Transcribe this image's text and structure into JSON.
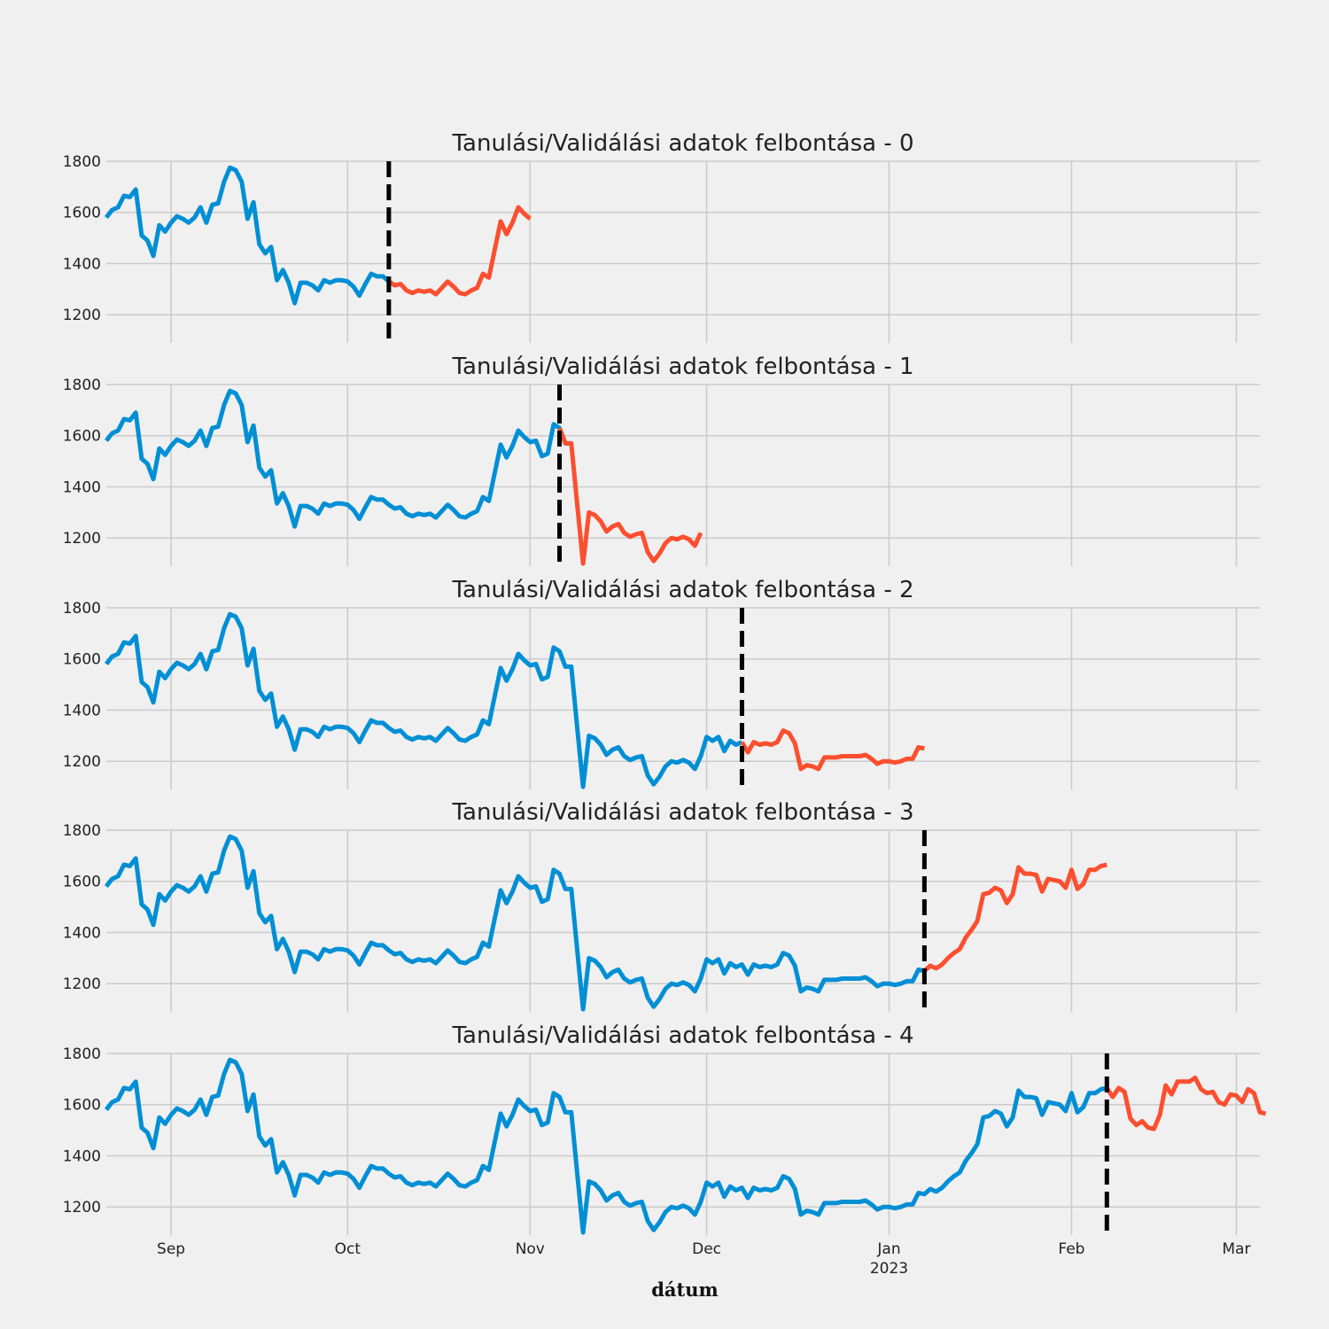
{
  "chart_data": {
    "type": "line",
    "title_prefix": "Tanulási/Validálási adatok felbontása - ",
    "xlabel": "dátum",
    "x_range": [
      "2022-08-21",
      "2023-03-05"
    ],
    "y_range": [
      1090,
      1800
    ],
    "y_ticks": [
      1200,
      1400,
      1600,
      1800
    ],
    "x_ticks": [
      {
        "date": "2022-09-01",
        "label": "Sep",
        "sublabel": ""
      },
      {
        "date": "2022-10-01",
        "label": "Oct",
        "sublabel": ""
      },
      {
        "date": "2022-11-01",
        "label": "Nov",
        "sublabel": ""
      },
      {
        "date": "2022-12-01",
        "label": "Dec",
        "sublabel": ""
      },
      {
        "date": "2023-01-01",
        "label": "Jan",
        "sublabel": "2023"
      },
      {
        "date": "2023-02-01",
        "label": "Feb",
        "sublabel": ""
      },
      {
        "date": "2023-03-01",
        "label": "Mar",
        "sublabel": ""
      }
    ],
    "grid": true,
    "colors": {
      "train": "#008fd5",
      "validation": "#fc4f30",
      "split": "#000000"
    },
    "start_date": "2022-08-21",
    "values": [
      1580,
      1610,
      1620,
      1665,
      1660,
      1690,
      1510,
      1490,
      1430,
      1550,
      1525,
      1560,
      1585,
      1575,
      1560,
      1580,
      1620,
      1560,
      1630,
      1635,
      1720,
      1775,
      1765,
      1720,
      1575,
      1640,
      1475,
      1440,
      1465,
      1335,
      1375,
      1325,
      1245,
      1325,
      1325,
      1315,
      1295,
      1335,
      1325,
      1335,
      1335,
      1330,
      1310,
      1275,
      1320,
      1360,
      1350,
      1350,
      1330,
      1315,
      1320,
      1295,
      1285,
      1295,
      1290,
      1295,
      1280,
      1305,
      1330,
      1310,
      1285,
      1280,
      1295,
      1305,
      1360,
      1345,
      1455,
      1565,
      1515,
      1560,
      1620,
      1595,
      1575,
      1580,
      1520,
      1530,
      1645,
      1630,
      1570,
      1570,
      1335,
      1100,
      1300,
      1290,
      1265,
      1225,
      1245,
      1255,
      1220,
      1205,
      1215,
      1220,
      1145,
      1110,
      1140,
      1180,
      1200,
      1195,
      1205,
      1195,
      1170,
      1220,
      1295,
      1280,
      1295,
      1240,
      1280,
      1265,
      1275,
      1235,
      1275,
      1265,
      1270,
      1265,
      1275,
      1320,
      1310,
      1270,
      1170,
      1185,
      1180,
      1170,
      1215,
      1215,
      1215,
      1220,
      1220,
      1220,
      1220,
      1225,
      1210,
      1190,
      1200,
      1200,
      1195,
      1200,
      1210,
      1210,
      1255,
      1250,
      1270,
      1260,
      1275,
      1300,
      1320,
      1335,
      1380,
      1410,
      1445,
      1550,
      1555,
      1575,
      1565,
      1515,
      1550,
      1655,
      1630,
      1630,
      1625,
      1560,
      1610,
      1605,
      1600,
      1575,
      1645,
      1570,
      1590,
      1645,
      1645,
      1660,
      1665,
      1630,
      1665,
      1650,
      1545,
      1520,
      1535,
      1510,
      1505,
      1560,
      1675,
      1640,
      1690,
      1690,
      1690,
      1705,
      1660,
      1645,
      1650,
      1610,
      1600,
      1640,
      1635,
      1610,
      1660,
      1645,
      1570,
      1565,
      1565,
      1565,
      1565
    ],
    "folds": [
      {
        "index": 0,
        "split_index": 48,
        "train_end": 48,
        "val_end": 72
      },
      {
        "index": 1,
        "split_index": 77,
        "train_end": 79,
        "val_end": 101
      },
      {
        "index": 2,
        "split_index": 108,
        "train_end": 108,
        "val_end": 139
      },
      {
        "index": 3,
        "split_index": 139,
        "train_end": 140,
        "val_end": 170
      },
      {
        "index": 4,
        "split_index": 170,
        "train_end": 170,
        "val_end": 197
      }
    ]
  }
}
